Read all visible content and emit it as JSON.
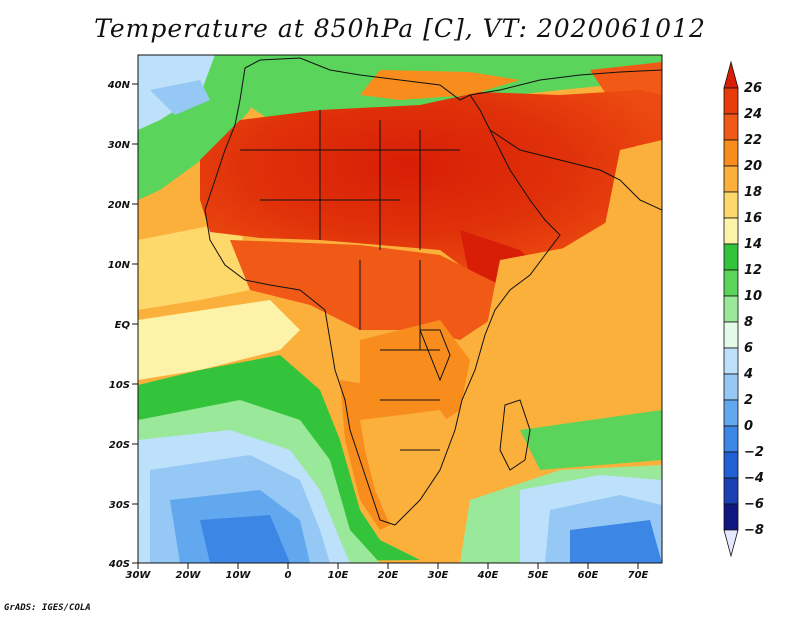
{
  "title": "Temperature at 850hPa [C], VT: 2020061012",
  "credit": "GrADS: IGES/COLA",
  "map": {
    "lat_labels": [
      "40N",
      "30N",
      "20N",
      "10N",
      "EQ",
      "10S",
      "20S",
      "30S",
      "40S"
    ],
    "lon_labels": [
      "30W",
      "20W",
      "10W",
      "0",
      "10E",
      "20E",
      "30E",
      "40E",
      "50E",
      "60E",
      "70E"
    ]
  },
  "colorbar": {
    "labels": [
      "26",
      "24",
      "22",
      "20",
      "18",
      "16",
      "14",
      "12",
      "10",
      "8",
      "6",
      "4",
      "2",
      "0",
      "−2",
      "−4",
      "−6",
      "−8"
    ],
    "colors": [
      "#d81e06",
      "#e73c0a",
      "#f05a16",
      "#f88c1c",
      "#fbb03c",
      "#fdd86a",
      "#fcf3a8",
      "#34c43c",
      "#5ad45a",
      "#9ae89a",
      "#e2fae8",
      "#bde0fb",
      "#95c8f4",
      "#62a8ee",
      "#3c86e6",
      "#2060d2",
      "#1a40b4",
      "#101880",
      "#e6e8ff"
    ]
  }
}
